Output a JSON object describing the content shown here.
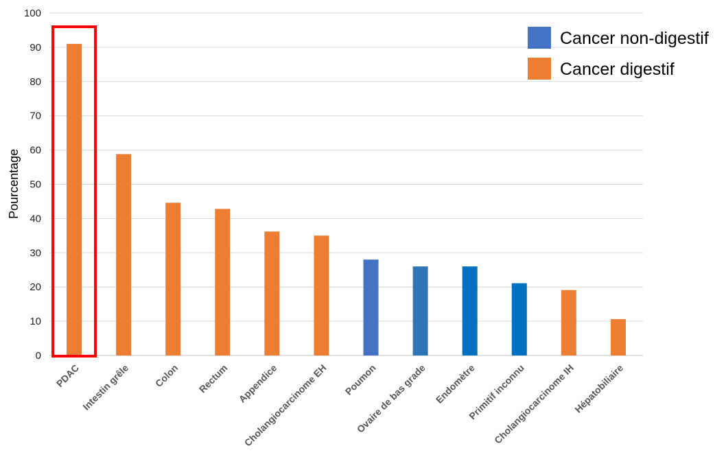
{
  "chart_data": {
    "type": "bar",
    "categories": [
      "PDAC",
      "Intestin grêle",
      "Colon",
      "Rectum",
      "Appendice",
      "Cholangiocarcinome EH",
      "Poumon",
      "Ovaire de bas grade",
      "Endomètre",
      "Primitif inconnu",
      "Cholangiocarcinome IH",
      "Hépatobiliaire"
    ],
    "values": [
      91,
      58.8,
      44.6,
      42.8,
      36.2,
      35,
      28,
      26,
      26,
      21.1,
      19.1,
      10.6
    ],
    "bar_colors": [
      "#ED7D31",
      "#ED7D31",
      "#ED7D31",
      "#ED7D31",
      "#ED7D31",
      "#ED7D31",
      "#4472C4",
      "#2E75B6",
      "#0070C0",
      "#0070C0",
      "#ED7D31",
      "#ED7D31"
    ],
    "ylabel": "Pourcentage",
    "xlabel": "",
    "ylim": [
      0,
      100
    ],
    "yticks": [
      "0",
      "10",
      "20",
      "30",
      "40",
      "50",
      "60",
      "70",
      "80",
      "90",
      "100"
    ],
    "grid": true,
    "legend_position": "top-right",
    "legend": [
      {
        "label": "Cancer non-digestif",
        "color": "#4472C4"
      },
      {
        "label": "Cancer digestif",
        "color": "#ED7D31"
      }
    ],
    "highlight": {
      "category": "PDAC",
      "color": "#FF0000"
    }
  }
}
